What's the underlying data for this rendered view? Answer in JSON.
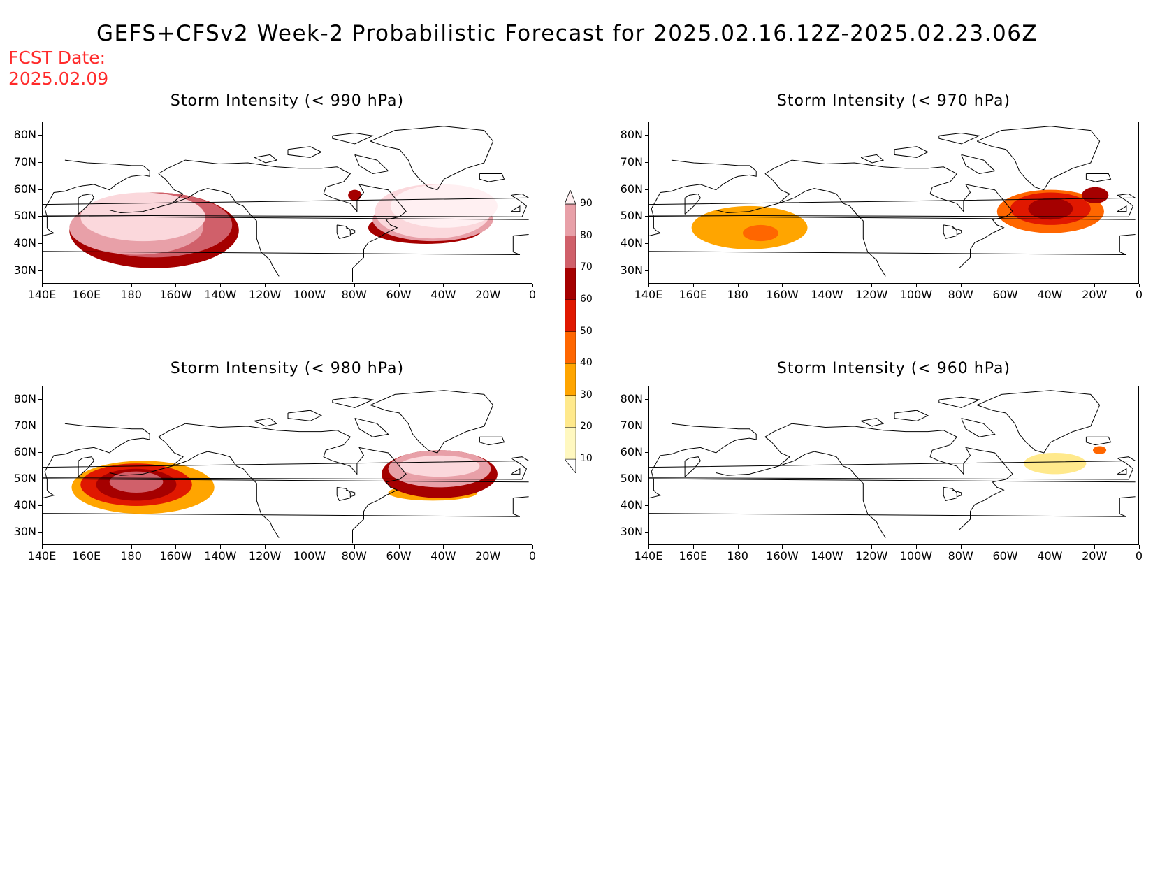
{
  "header": {
    "title": "GEFS+CFSv2 Week-2 Probabilistic Forecast for 2025.02.16.12Z-2025.02.23.06Z",
    "fcst_label": "FCST Date:",
    "fcst_date": "2025.02.09"
  },
  "axes": {
    "lat_labels": [
      "80N",
      "70N",
      "60N",
      "50N",
      "40N",
      "30N"
    ],
    "lon_labels": [
      "140E",
      "160E",
      "180",
      "160W",
      "140W",
      "120W",
      "100W",
      "80W",
      "60W",
      "40W",
      "20W",
      "0"
    ]
  },
  "panels": [
    {
      "title": "Storm Intensity (< 990 hPa)",
      "blobs": [
        {
          "lon": -175,
          "lat": 50,
          "rlon": 28,
          "rlat": 9,
          "level": 80
        },
        {
          "lon": -178,
          "lat": 46,
          "rlon": 30,
          "rlat": 10,
          "level": 70
        },
        {
          "lon": -170,
          "lat": 47,
          "rlon": 35,
          "rlat": 12,
          "level": 60
        },
        {
          "lon": -170,
          "lat": 45,
          "rlon": 38,
          "rlat": 14,
          "level": 50
        },
        {
          "lon": -40,
          "lat": 54,
          "rlon": 24,
          "rlat": 8,
          "level": 90
        },
        {
          "lon": -45,
          "lat": 52,
          "rlon": 26,
          "rlat": 10,
          "level": 80
        },
        {
          "lon": -45,
          "lat": 49,
          "rlon": 27,
          "rlat": 8,
          "level": 70
        },
        {
          "lon": -48,
          "lat": 46,
          "rlon": 26,
          "rlat": 6,
          "level": 50
        },
        {
          "lon": -80,
          "lat": 58,
          "rlon": 3,
          "rlat": 2,
          "level": 50
        }
      ]
    },
    {
      "title": "Storm Intensity (< 970 hPa)",
      "blobs": [
        {
          "lon": -175,
          "lat": 46,
          "rlon": 26,
          "rlat": 8,
          "level": 20
        },
        {
          "lon": -170,
          "lat": 44,
          "rlon": 8,
          "rlat": 3,
          "level": 30
        },
        {
          "lon": -40,
          "lat": 52,
          "rlon": 24,
          "rlat": 8,
          "level": 30
        },
        {
          "lon": -40,
          "lat": 53,
          "rlon": 18,
          "rlat": 6,
          "level": 40
        },
        {
          "lon": -40,
          "lat": 53,
          "rlon": 10,
          "rlat": 4,
          "level": 50
        },
        {
          "lon": -20,
          "lat": 58,
          "rlon": 6,
          "rlat": 3,
          "level": 50
        }
      ]
    },
    {
      "title": "Storm Intensity (< 980 hPa)",
      "blobs": [
        {
          "lon": -175,
          "lat": 47,
          "rlon": 32,
          "rlat": 10,
          "level": 20
        },
        {
          "lon": -178,
          "lat": 48,
          "rlon": 25,
          "rlat": 8,
          "level": 40
        },
        {
          "lon": -178,
          "lat": 48,
          "rlon": 18,
          "rlat": 6,
          "level": 50
        },
        {
          "lon": -178,
          "lat": 49,
          "rlon": 12,
          "rlat": 4,
          "level": 60
        },
        {
          "lon": -42,
          "lat": 52,
          "rlon": 26,
          "rlat": 9,
          "level": 50
        },
        {
          "lon": -42,
          "lat": 54,
          "rlon": 23,
          "rlat": 7,
          "level": 70
        },
        {
          "lon": -42,
          "lat": 55,
          "rlon": 18,
          "rlat": 4,
          "level": 80
        },
        {
          "lon": -45,
          "lat": 45,
          "rlon": 20,
          "rlat": 3,
          "level": 20
        }
      ]
    },
    {
      "title": "Storm Intensity (< 960 hPa)",
      "blobs": [
        {
          "lon": -38,
          "lat": 56,
          "rlon": 14,
          "rlat": 4,
          "level": 10
        },
        {
          "lon": -18,
          "lat": 61,
          "rlon": 3,
          "rlat": 1.5,
          "level": 30
        }
      ]
    }
  ],
  "colorbar": {
    "levels": [
      "10",
      "20",
      "30",
      "40",
      "50",
      "60",
      "70",
      "80",
      "90"
    ],
    "colors": [
      "#fff8c0",
      "#ffe98c",
      "#ffa500",
      "#ff6600",
      "#e01800",
      "#a50000",
      "#d0606a",
      "#e8a0a8",
      "#fbd8dc",
      "#fff0f2"
    ]
  }
}
